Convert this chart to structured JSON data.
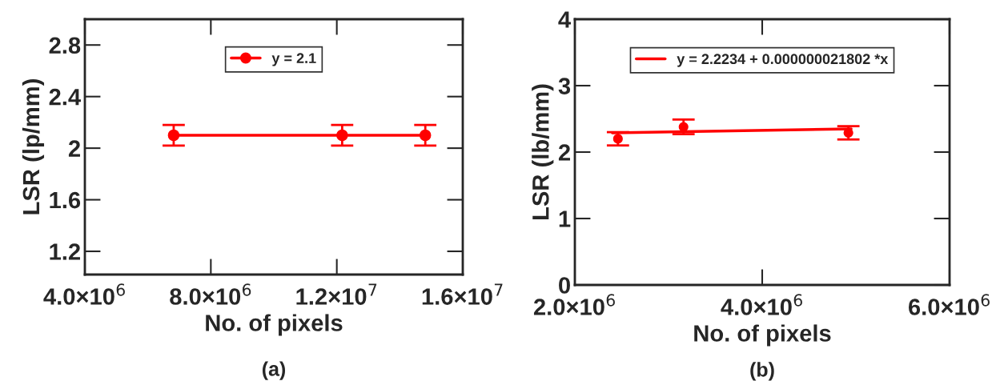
{
  "chart_data": [
    {
      "type": "line",
      "xlabel": "No. of pixels",
      "ylabel": "LSR (lp/mm)",
      "annotations": [
        "(a)"
      ],
      "xlim": [
        4000000,
        16000000
      ],
      "xticks": [
        {
          "value": 4000000,
          "label": "4.0×10$^{6}$"
        },
        {
          "value": 8000000,
          "label": "8.0×10$^{6}$"
        },
        {
          "value": 12000000,
          "label": "1.2×10$^{7}$"
        },
        {
          "value": 16000000,
          "label": "1.6×10$^{7}$"
        }
      ],
      "ylim": [
        1.02,
        3.0
      ],
      "yticks": [
        1.2,
        1.6,
        2,
        2.4,
        2.8
      ],
      "grid": false,
      "legend": "top",
      "series": [
        {
          "name": "y = 2.1",
          "marker": "circle",
          "color": "#ff0000",
          "x": [
            6820000,
            12170000,
            14810000
          ],
          "values": [
            2.1,
            2.1,
            2.1
          ],
          "errors": [
            0.08,
            0.08,
            0.08
          ]
        }
      ]
    },
    {
      "type": "scatter",
      "xlabel": "No. of pixels",
      "ylabel": "LSR (lb/mm)",
      "annotations": [
        "(b)"
      ],
      "xlim": [
        2000000,
        6000000
      ],
      "xticks": [
        {
          "value": 2000000,
          "label": "2.0×10$^{6}$"
        },
        {
          "value": 4000000,
          "label": "4.0×10$^{6}$"
        },
        {
          "value": 6000000,
          "label": "6.0×10$^{6}$"
        }
      ],
      "ylim": [
        0,
        4
      ],
      "yticks": [
        0,
        1,
        2,
        3,
        4
      ],
      "grid": false,
      "legend": "top",
      "series": [
        {
          "marker": "circle",
          "color": "#ff0000",
          "x": [
            2460000,
            3160000,
            4920000
          ],
          "values": [
            2.2,
            2.38,
            2.29
          ],
          "errors": [
            0.1,
            0.11,
            0.1
          ]
        },
        {
          "name": "y = 2.2234 + 0.000000021802 *x",
          "type": "line",
          "marker": "none",
          "color": "#ff0000",
          "x": [
            2400000,
            4950000
          ],
          "values": [
            2.29,
            2.35
          ]
        }
      ]
    }
  ]
}
